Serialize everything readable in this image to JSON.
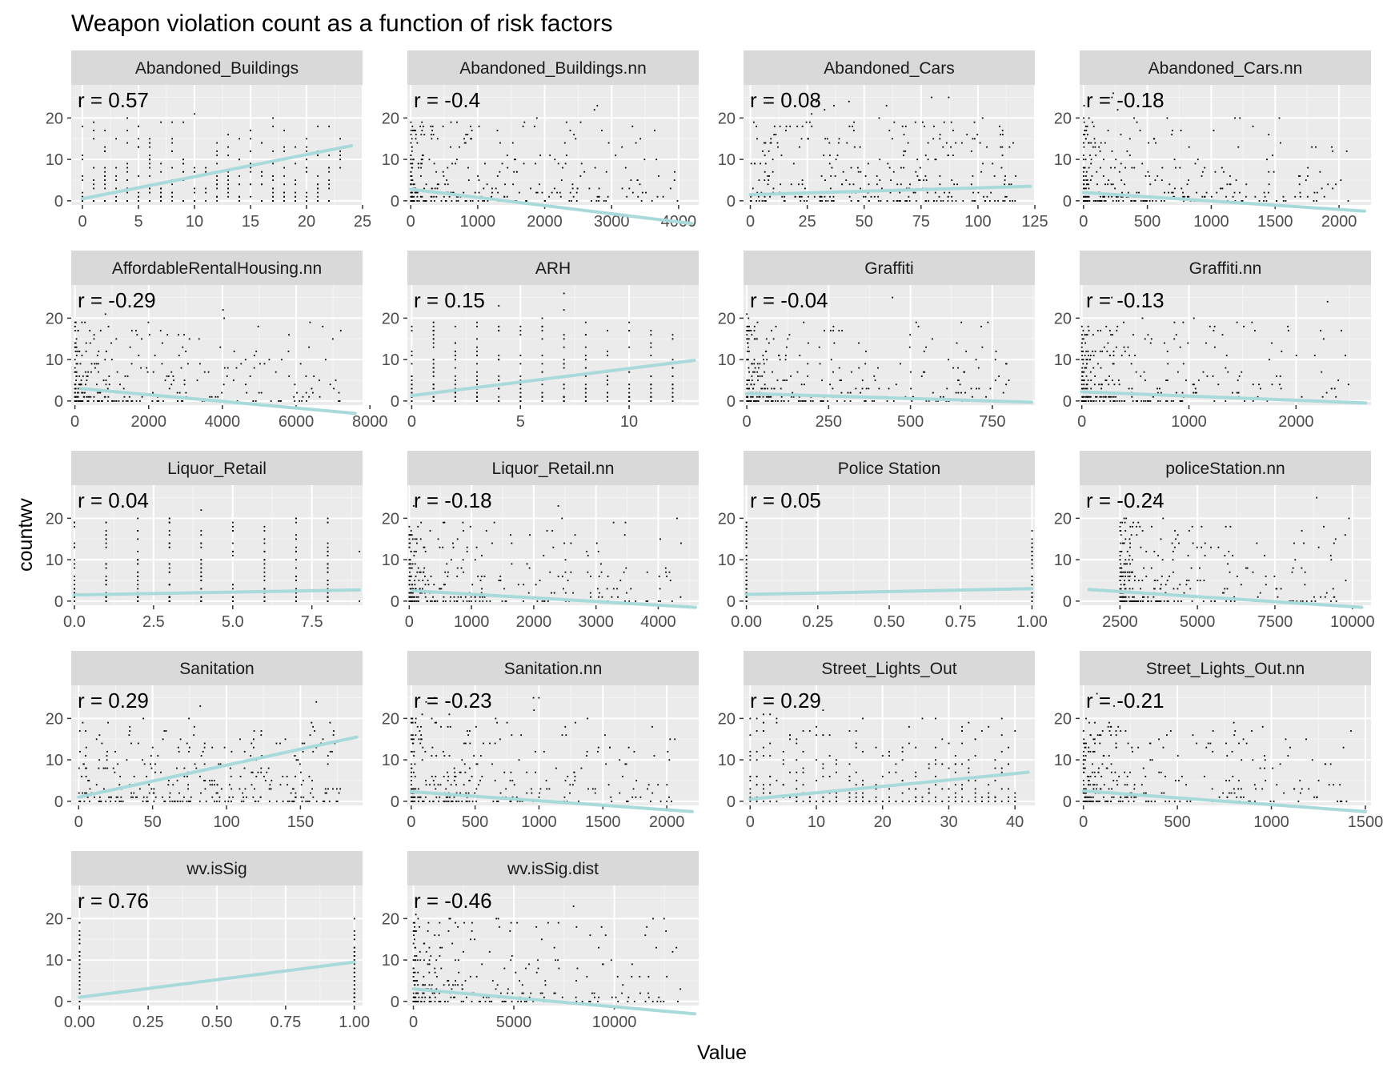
{
  "chart_data": {
    "type": "scatter",
    "title": "Weapon violation count as a function of risk factors",
    "xlabel": "Value",
    "ylabel": "countwv",
    "colors": {
      "panel_bg": "#ebebeb",
      "strip_bg": "#d9d9d9",
      "grid_major": "#ffffff",
      "points": "#000000",
      "fit_line": "#a8dadc",
      "tick_text": "#4d4d4d"
    },
    "shared_y": {
      "ylim": [
        -1,
        28
      ],
      "ticks": [
        0,
        10,
        20
      ]
    },
    "panels": [
      {
        "name": "Abandoned_Buildings",
        "r_label": "r = 0.57",
        "xlim": [
          -1,
          25
        ],
        "xticks": [
          0,
          5,
          10,
          15,
          20,
          25
        ],
        "fit": {
          "x": [
            0,
            24
          ],
          "y": [
            0.5,
            13.3
          ]
        }
      },
      {
        "name": "Abandoned_Buildings.nn",
        "r_label": "r = -0.4",
        "xlim": [
          -50,
          4300
        ],
        "xticks": [
          0,
          1000,
          2000,
          3000,
          4000
        ],
        "fit": {
          "x": [
            0,
            4200
          ],
          "y": [
            2.8,
            -5.5
          ]
        }
      },
      {
        "name": "Abandoned_Cars",
        "r_label": "r = 0.08",
        "xlim": [
          -3,
          125
        ],
        "xticks": [
          0,
          25,
          50,
          75,
          100,
          125
        ],
        "fit": {
          "x": [
            0,
            123
          ],
          "y": [
            1.5,
            3.5
          ]
        }
      },
      {
        "name": "Abandoned_Cars.nn",
        "r_label": "r = -0.18",
        "xlim": [
          -30,
          2250
        ],
        "xticks": [
          0,
          500,
          1000,
          1500,
          2000
        ],
        "fit": {
          "x": [
            0,
            2200
          ],
          "y": [
            2.0,
            -2.5
          ]
        }
      },
      {
        "name": "AffordableRentalHousing.nn",
        "r_label": "r = -0.29",
        "xlim": [
          -100,
          7800
        ],
        "xticks": [
          0,
          2000,
          4000,
          6000,
          8000
        ],
        "fit": {
          "x": [
            150,
            7600
          ],
          "y": [
            3.0,
            -3.0
          ]
        }
      },
      {
        "name": "ARH",
        "r_label": "r = 0.15",
        "xlim": [
          -0.2,
          13.2
        ],
        "xticks": [
          0,
          5,
          10
        ],
        "fit": {
          "x": [
            0,
            13
          ],
          "y": [
            1.3,
            9.8
          ]
        }
      },
      {
        "name": "Graffiti",
        "r_label": "r = -0.04",
        "xlim": [
          -10,
          880
        ],
        "xticks": [
          0,
          250,
          500,
          750
        ],
        "fit": {
          "x": [
            0,
            870
          ],
          "y": [
            1.8,
            -0.3
          ]
        }
      },
      {
        "name": "Graffiti.nn",
        "r_label": "r = -0.13",
        "xlim": [
          -20,
          2700
        ],
        "xticks": [
          0,
          1000,
          2000
        ],
        "fit": {
          "x": [
            0,
            2650
          ],
          "y": [
            2.2,
            -0.5
          ]
        }
      },
      {
        "name": "Liquor_Retail",
        "r_label": "r = 0.04",
        "xlim": [
          -0.1,
          9.1
        ],
        "xticks": [
          0.0,
          2.5,
          5.0,
          7.5
        ],
        "tick_labels": [
          "0.0",
          "2.5",
          "5.0",
          "7.5"
        ],
        "fit": {
          "x": [
            0,
            9
          ],
          "y": [
            1.5,
            2.7
          ]
        }
      },
      {
        "name": "Liquor_Retail.nn",
        "r_label": "r = -0.18",
        "xlim": [
          -30,
          4650
        ],
        "xticks": [
          0,
          1000,
          2000,
          3000,
          4000
        ],
        "fit": {
          "x": [
            50,
            4600
          ],
          "y": [
            2.5,
            -1.5
          ]
        }
      },
      {
        "name": "Police Station",
        "r_label": "r = 0.05",
        "xlim": [
          -0.01,
          1.01
        ],
        "xticks": [
          0.0,
          0.25,
          0.5,
          0.75,
          1.0
        ],
        "tick_labels": [
          "0.00",
          "0.25",
          "0.50",
          "0.75",
          "1.00"
        ],
        "fit": {
          "x": [
            0,
            1
          ],
          "y": [
            1.6,
            3.0
          ]
        }
      },
      {
        "name": "policeStation.nn",
        "r_label": "r = -0.24",
        "xlim": [
          1200,
          10600
        ],
        "xticks": [
          2500,
          5000,
          7500,
          10000
        ],
        "fit": {
          "x": [
            1500,
            10300
          ],
          "y": [
            2.8,
            -1.5
          ]
        }
      },
      {
        "name": "Sanitation",
        "r_label": "r = 0.29",
        "xlim": [
          -5,
          192
        ],
        "xticks": [
          0,
          50,
          100,
          150
        ],
        "fit": {
          "x": [
            0,
            188
          ],
          "y": [
            1.0,
            15.5
          ]
        }
      },
      {
        "name": "Sanitation.nn",
        "r_label": "r = -0.23",
        "xlim": [
          -30,
          2250
        ],
        "xticks": [
          0,
          500,
          1000,
          1500,
          2000
        ],
        "fit": {
          "x": [
            0,
            2200
          ],
          "y": [
            2.3,
            -2.5
          ]
        }
      },
      {
        "name": "Street_Lights_Out",
        "r_label": "r = 0.29",
        "xlim": [
          -1,
          43
        ],
        "xticks": [
          0,
          10,
          20,
          30,
          40
        ],
        "fit": {
          "x": [
            0,
            42
          ],
          "y": [
            0.5,
            7.0
          ]
        }
      },
      {
        "name": "Street_Lights_Out.nn",
        "r_label": "r = -0.21",
        "xlim": [
          -20,
          1530
        ],
        "xticks": [
          0,
          500,
          1000,
          1500
        ],
        "fit": {
          "x": [
            0,
            1500
          ],
          "y": [
            2.5,
            -2.5
          ]
        }
      },
      {
        "name": "wv.isSig",
        "r_label": "r = 0.76",
        "xlim": [
          -0.03,
          1.03
        ],
        "xticks": [
          0.0,
          0.25,
          0.5,
          0.75,
          1.0
        ],
        "tick_labels": [
          "0.00",
          "0.25",
          "0.50",
          "0.75",
          "1.00"
        ],
        "fit": {
          "x": [
            0,
            1
          ],
          "y": [
            1.0,
            9.5
          ]
        }
      },
      {
        "name": "wv.isSig.dist",
        "r_label": "r = -0.46",
        "xlim": [
          -300,
          14200
        ],
        "xticks": [
          0,
          5000,
          10000
        ],
        "fit": {
          "x": [
            0,
            14000
          ],
          "y": [
            3.0,
            -3.0
          ]
        }
      }
    ]
  }
}
